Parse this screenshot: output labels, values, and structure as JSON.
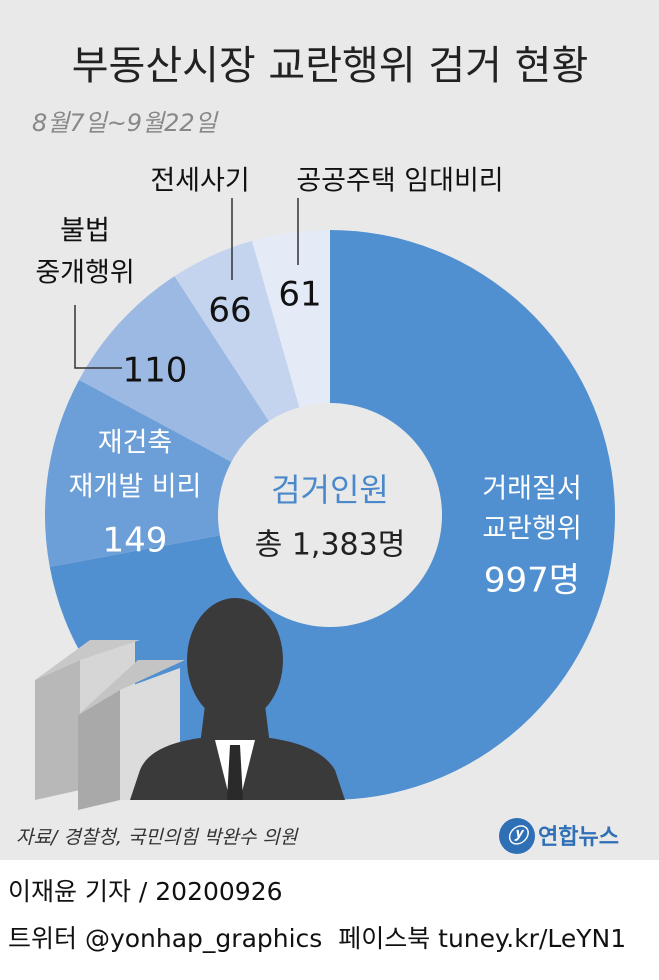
{
  "chart_data": {
    "type": "donut",
    "title": "부동산시장 교란행위 검거 현황",
    "subtitle": "8월7일~9월22일",
    "categories": [
      [
        "거래질서",
        "교란행위"
      ],
      [
        "재건축",
        "재개발 비리"
      ],
      [
        "불법",
        "중개행위"
      ],
      [
        "전세사기"
      ],
      [
        "공공주택 임대비리"
      ]
    ],
    "values": [
      997,
      149,
      110,
      66,
      61
    ],
    "value_labels": [
      "997명",
      "149",
      "110",
      "66",
      "61"
    ],
    "colors": [
      "#5190d0",
      "#6c9fd8",
      "#9bb9e3",
      "#c4d4ee",
      "#e4eaf6"
    ],
    "center_title": "검거인원",
    "center_total": "총 1,383명",
    "source": "자료/ 경찰청, 국민의힘 박완수 의원"
  },
  "logo": "연합뉴스",
  "byline": "이재윤 기자 / 20200926",
  "social": "트위터 @yonhap_graphics  페이스북 tuney.kr/LeYN1"
}
